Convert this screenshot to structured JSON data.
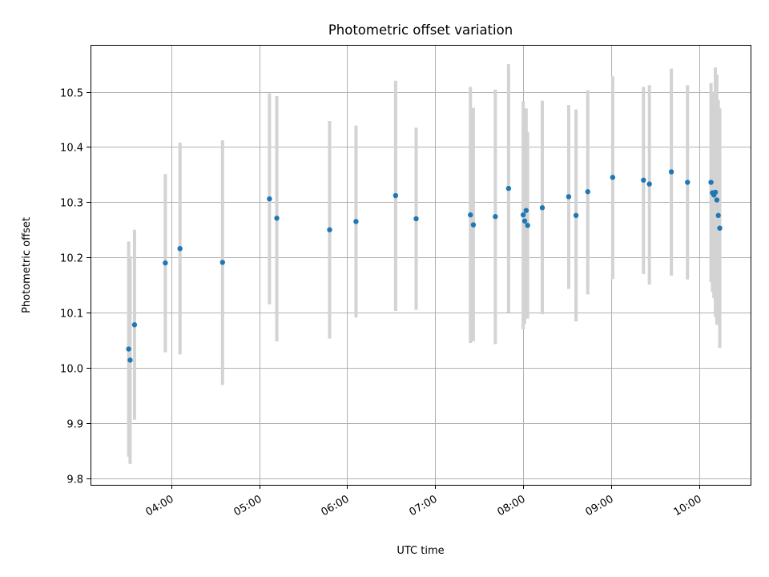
{
  "chart_data": {
    "type": "scatter",
    "title": "Photometric offset variation",
    "xlabel": "UTC time",
    "ylabel": "Photometric offset",
    "grid": true,
    "x_ticks": [
      "04:00",
      "05:00",
      "06:00",
      "07:00",
      "08:00",
      "09:00",
      "10:00"
    ],
    "y_ticks": [
      9.8,
      9.9,
      10.0,
      10.1,
      10.2,
      10.3,
      10.4,
      10.5
    ],
    "ylim": [
      9.788,
      10.585
    ],
    "xlim": [
      "03:05",
      "10:35"
    ],
    "series": [
      {
        "points": [
          {
            "t": "03:31",
            "y": 10.034,
            "lo": 9.839,
            "hi": 10.229
          },
          {
            "t": "03:32",
            "y": 10.014,
            "lo": 9.826,
            "hi": 10.202
          },
          {
            "t": "03:35",
            "y": 10.078,
            "lo": 9.906,
            "hi": 10.25
          },
          {
            "t": "03:56",
            "y": 10.19,
            "lo": 10.028,
            "hi": 10.351
          },
          {
            "t": "04:06",
            "y": 10.216,
            "lo": 10.024,
            "hi": 10.408
          },
          {
            "t": "04:35",
            "y": 10.191,
            "lo": 9.969,
            "hi": 10.412
          },
          {
            "t": "05:07",
            "y": 10.306,
            "lo": 10.115,
            "hi": 10.497
          },
          {
            "t": "05:12",
            "y": 10.271,
            "lo": 10.048,
            "hi": 10.492
          },
          {
            "t": "05:48",
            "y": 10.25,
            "lo": 10.053,
            "hi": 10.447
          },
          {
            "t": "06:06",
            "y": 10.265,
            "lo": 10.091,
            "hi": 10.439
          },
          {
            "t": "06:33",
            "y": 10.312,
            "lo": 10.103,
            "hi": 10.52
          },
          {
            "t": "06:47",
            "y": 10.27,
            "lo": 10.105,
            "hi": 10.435
          },
          {
            "t": "07:24",
            "y": 10.277,
            "lo": 10.045,
            "hi": 10.509
          },
          {
            "t": "07:26",
            "y": 10.259,
            "lo": 10.048,
            "hi": 10.471
          },
          {
            "t": "07:41",
            "y": 10.274,
            "lo": 10.043,
            "hi": 10.504
          },
          {
            "t": "07:50",
            "y": 10.325,
            "lo": 10.1,
            "hi": 10.55
          },
          {
            "t": "08:00",
            "y": 10.277,
            "lo": 10.07,
            "hi": 10.483
          },
          {
            "t": "08:01",
            "y": 10.266,
            "lo": 10.08,
            "hi": 10.465
          },
          {
            "t": "08:02",
            "y": 10.285,
            "lo": 10.09,
            "hi": 10.47
          },
          {
            "t": "08:03",
            "y": 10.258,
            "lo": 10.089,
            "hi": 10.427
          },
          {
            "t": "08:13",
            "y": 10.29,
            "lo": 10.097,
            "hi": 10.484
          },
          {
            "t": "08:31",
            "y": 10.31,
            "lo": 10.143,
            "hi": 10.476
          },
          {
            "t": "08:36",
            "y": 10.276,
            "lo": 10.084,
            "hi": 10.468
          },
          {
            "t": "08:44",
            "y": 10.319,
            "lo": 10.133,
            "hi": 10.503
          },
          {
            "t": "09:01",
            "y": 10.345,
            "lo": 10.161,
            "hi": 10.528
          },
          {
            "t": "09:22",
            "y": 10.34,
            "lo": 10.17,
            "hi": 10.509
          },
          {
            "t": "09:26",
            "y": 10.333,
            "lo": 10.151,
            "hi": 10.512
          },
          {
            "t": "09:41",
            "y": 10.355,
            "lo": 10.167,
            "hi": 10.542
          },
          {
            "t": "09:52",
            "y": 10.336,
            "lo": 10.16,
            "hi": 10.512
          },
          {
            "t": "10:08",
            "y": 10.336,
            "lo": 10.155,
            "hi": 10.516
          },
          {
            "t": "10:09",
            "y": 10.317,
            "lo": 10.137,
            "hi": 10.496
          },
          {
            "t": "10:10",
            "y": 10.313,
            "lo": 10.126,
            "hi": 10.5
          },
          {
            "t": "10:11",
            "y": 10.318,
            "lo": 10.092,
            "hi": 10.544
          },
          {
            "t": "10:12",
            "y": 10.304,
            "lo": 10.078,
            "hi": 10.531
          },
          {
            "t": "10:13",
            "y": 10.276,
            "lo": 10.079,
            "hi": 10.485
          },
          {
            "t": "10:14",
            "y": 10.253,
            "lo": 10.036,
            "hi": 10.47
          }
        ],
        "point_color": "#1f77b4",
        "errorbar_color": "#d3d3d3"
      }
    ]
  }
}
